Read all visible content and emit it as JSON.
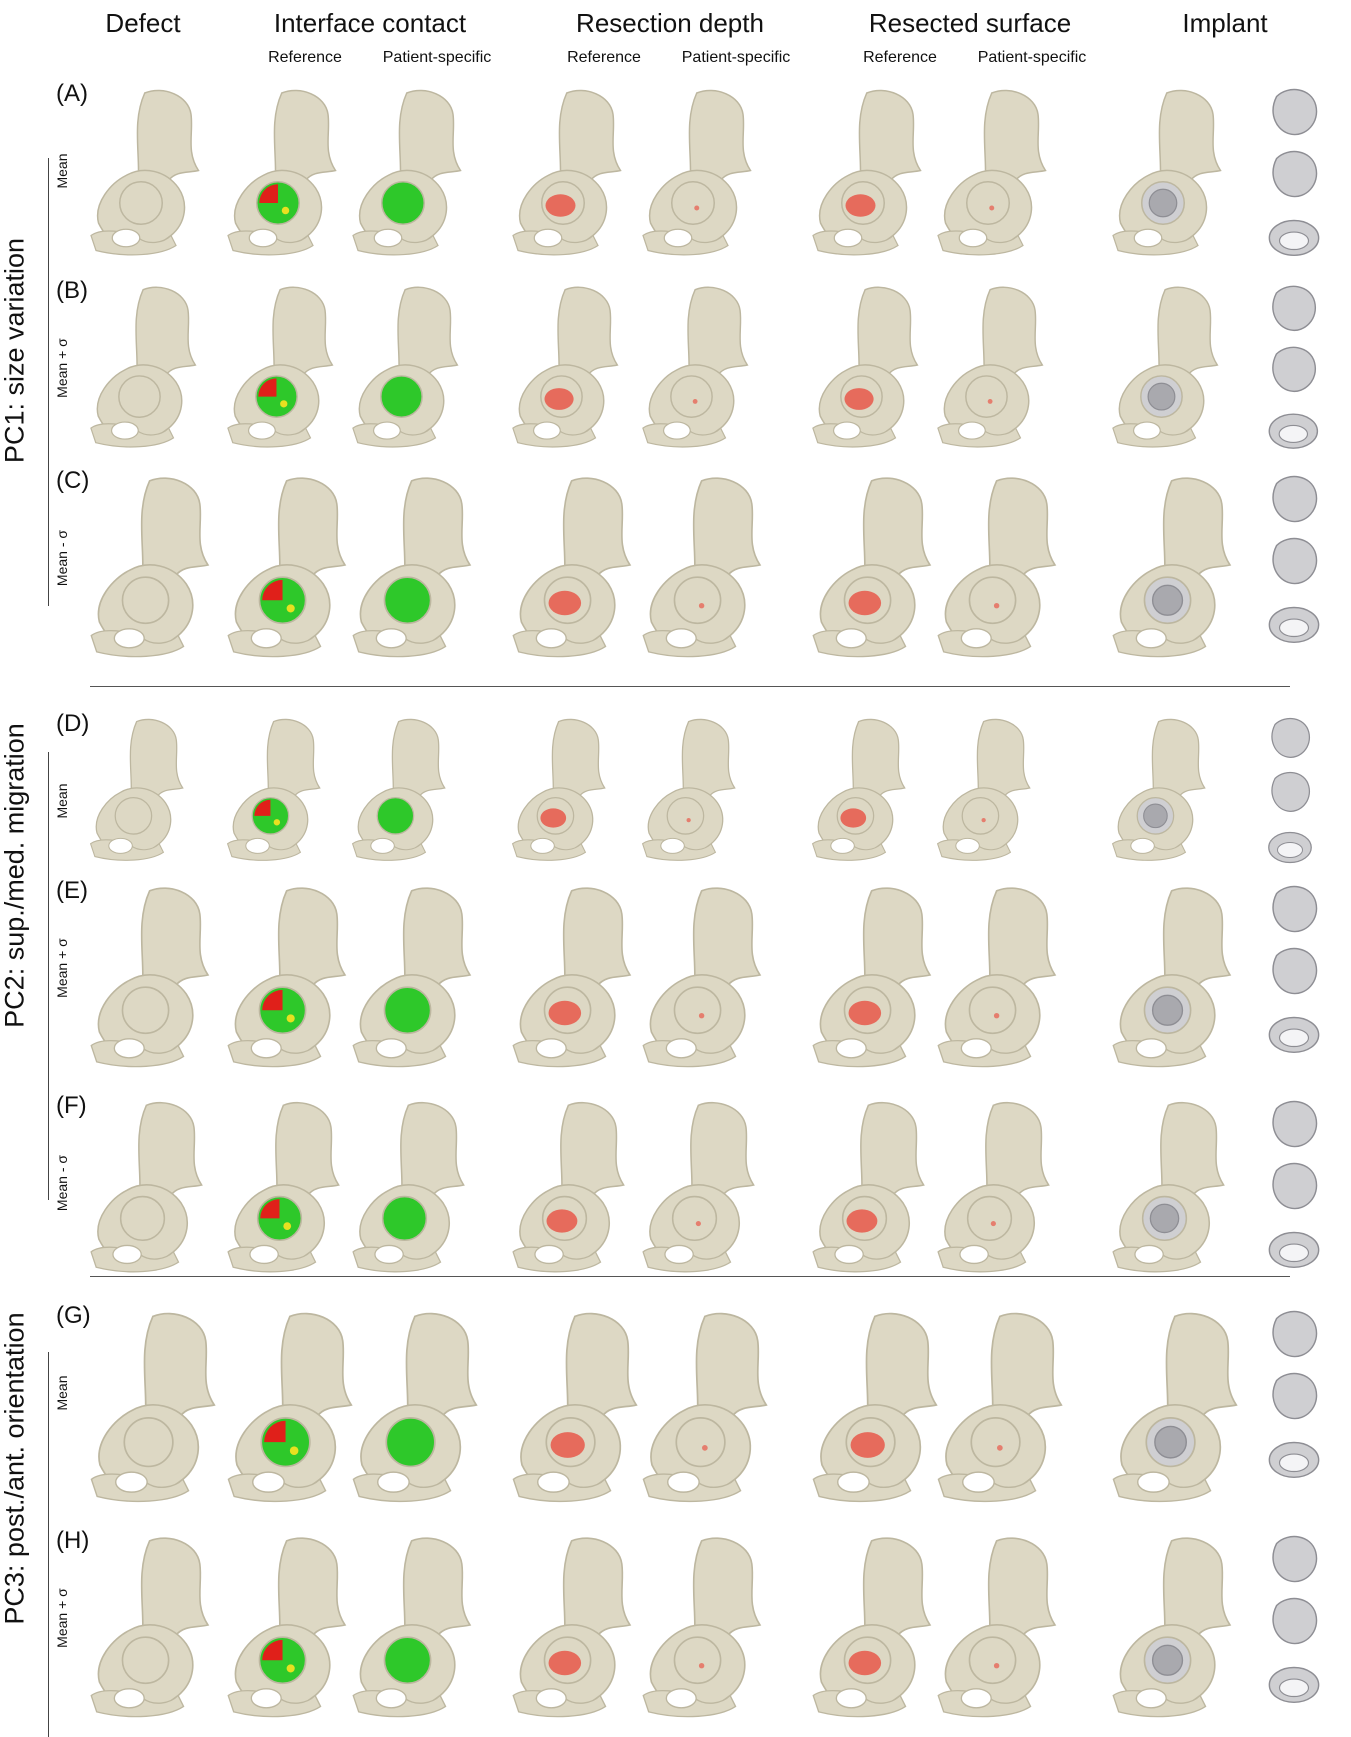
{
  "headers": {
    "columns": [
      "Defect",
      "Interface contact",
      "Resection depth",
      "Resected surface",
      "Implant"
    ],
    "subcolumns": [
      "Reference",
      "Patient-specific"
    ]
  },
  "groups": [
    {
      "label": "PC1: size variation",
      "rows": [
        {
          "id": "(A)",
          "variant": "Mean"
        },
        {
          "id": "(B)",
          "variant": "Mean + σ"
        },
        {
          "id": "(C)",
          "variant": "Mean - σ"
        }
      ]
    },
    {
      "label": "PC2: sup./med. migration",
      "rows": [
        {
          "id": "(D)",
          "variant": "Mean"
        },
        {
          "id": "(E)",
          "variant": "Mean + σ"
        },
        {
          "id": "(F)",
          "variant": "Mean - σ"
        }
      ]
    },
    {
      "label": "PC3: post./ant. orientation",
      "rows": [
        {
          "id": "(G)",
          "variant": "Mean"
        },
        {
          "id": "(H)",
          "variant": "Mean + σ"
        }
      ]
    }
  ],
  "colors": {
    "bone": "#ddd8c4",
    "bone_dark": "#bdb7a0",
    "contact_good": "#2ec82a",
    "contact_bad": "#e0201a",
    "contact_mid": "#e8e020",
    "resection": "#e8584a",
    "implant": "#cfcfd2"
  }
}
